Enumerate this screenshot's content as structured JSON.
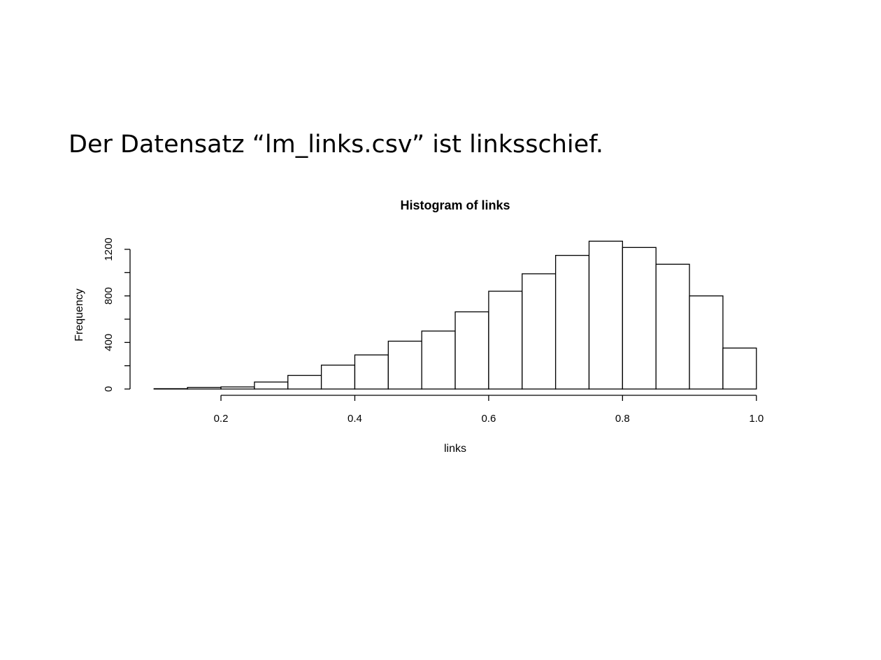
{
  "slide": {
    "title": "Der Datensatz “lm_links.csv” ist linksschief."
  },
  "chart_data": {
    "type": "bar",
    "title": "Histogram of links",
    "xlabel": "links",
    "ylabel": "Frequency",
    "breaks": [
      0.1,
      0.15,
      0.2,
      0.25,
      0.3,
      0.35,
      0.4,
      0.45,
      0.5,
      0.55,
      0.6,
      0.65,
      0.7,
      0.75,
      0.8,
      0.85,
      0.9,
      0.95,
      1.0
    ],
    "values": [
      3,
      14,
      18,
      60,
      117,
      205,
      293,
      411,
      498,
      663,
      840,
      990,
      1148,
      1270,
      1216,
      1072,
      800,
      352
    ],
    "x_ticks": [
      0.2,
      0.4,
      0.6,
      0.8,
      1.0
    ],
    "x_tick_labels": [
      "0.2",
      "0.4",
      "0.6",
      "0.8",
      "1.0"
    ],
    "y_ticks": [
      0,
      200,
      400,
      600,
      800,
      1000,
      1200
    ],
    "y_tick_labels": [
      "0",
      "",
      "400",
      "",
      "800",
      "",
      "1200"
    ],
    "xlim": [
      0.1,
      1.0
    ],
    "ylim": [
      0,
      1200
    ],
    "grid": false
  }
}
